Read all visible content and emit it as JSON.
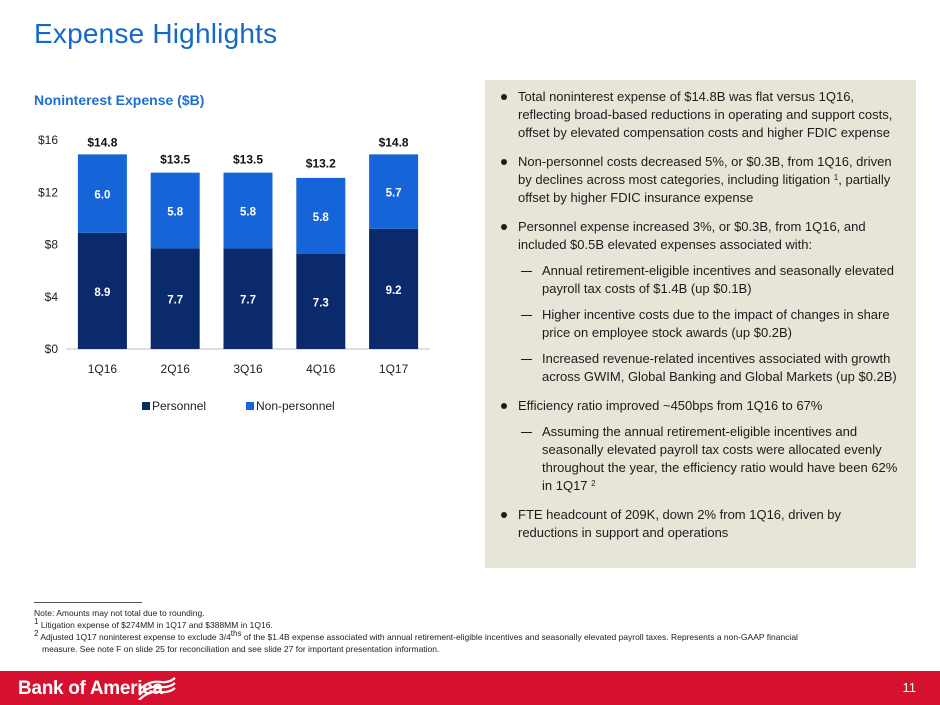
{
  "page": {
    "title": "Expense Highlights",
    "page_number": "11"
  },
  "colors": {
    "title_blue": "#1569c7",
    "personnel": "#0a2a6c",
    "non_personnel": "#1565d8",
    "panel_bg": "#e7e4d8",
    "footer_red": "#d6112f"
  },
  "chart_data": {
    "type": "bar",
    "stacked": true,
    "title": "Noninterest Expense ($B)",
    "categories": [
      "1Q16",
      "2Q16",
      "3Q16",
      "4Q16",
      "1Q17"
    ],
    "series": [
      {
        "name": "Personnel",
        "values": [
          8.9,
          7.7,
          7.7,
          7.3,
          9.2
        ],
        "labels": [
          "8.9",
          "7.7",
          "7.7",
          "7.3",
          "9.2"
        ]
      },
      {
        "name": "Non-personnel",
        "values": [
          6.0,
          5.8,
          5.8,
          5.8,
          5.7
        ],
        "labels": [
          "6.0",
          "5.8",
          "5.8",
          "5.8",
          "5.7"
        ]
      }
    ],
    "totals": [
      14.8,
      13.5,
      13.5,
      13.2,
      14.8
    ],
    "total_labels": [
      "$14.8",
      "$13.5",
      "$13.5",
      "$13.2",
      "$14.8"
    ],
    "y_ticks": [
      0,
      4,
      8,
      12,
      16
    ],
    "y_tick_labels": [
      "$0",
      "$4",
      "$8",
      "$12",
      "$16"
    ],
    "ylim": [
      0,
      16
    ],
    "legend": [
      "Personnel",
      "Non-personnel"
    ],
    "legend_position": "bottom",
    "grid": false
  },
  "bullets": {
    "b1": "Total noninterest expense of $14.8B was flat versus 1Q16, reflecting broad-based reductions in operating and support costs, offset by elevated compensation costs and higher FDIC expense",
    "b2_pre": "Non-personnel costs decreased 5%, or $0.3B, from 1Q16, driven by declines across most categories, including litigation",
    "b2_sup": "1",
    "b2_post": ", partially offset by higher FDIC insurance expense",
    "b3": "Personnel expense increased 3%, or $0.3B, from 1Q16, and included $0.5B elevated expenses associated with:",
    "b3_sub1": "Annual retirement-eligible incentives and seasonally elevated payroll tax costs of $1.4B (up $0.1B)",
    "b3_sub2": "Higher incentive costs due to the impact of changes in share price on employee stock awards (up $0.2B)",
    "b3_sub3": "Increased revenue-related incentives associated with growth across GWIM, Global Banking and Global Markets (up $0.2B)",
    "b4": "Efficiency ratio improved ~450bps from 1Q16 to 67%",
    "b4_sub1": "Assuming the annual retirement-eligible incentives and seasonally elevated payroll tax costs were allocated evenly throughout the year, the efficiency ratio would have been 62% in 1Q17",
    "b4_sub1_sup": "2",
    "b5": "FTE headcount of 209K, down 2% from 1Q16, driven by reductions in support and operations"
  },
  "footnotes": {
    "note": "Note: Amounts may not total due to rounding.",
    "fn1_num": "1",
    "fn1": "Litigation expense of $274MM in 1Q17 and $388MM in 1Q16.",
    "fn2_num": "2",
    "fn2_a": "Adjusted 1Q17 noninterest expense to exclude 3/4",
    "fn2_sup": "ths",
    "fn2_b": "of the $1.4B expense associated with annual retirement-eligible incentives and seasonally elevated payroll taxes. Represents a non-GAAP financial",
    "fn2_c": "measure. See note F on slide 25 for reconciliation and see slide 27 for important presentation information."
  },
  "footer": {
    "logo_text": "Bank of America",
    "logo_icon": "flag-icon"
  }
}
